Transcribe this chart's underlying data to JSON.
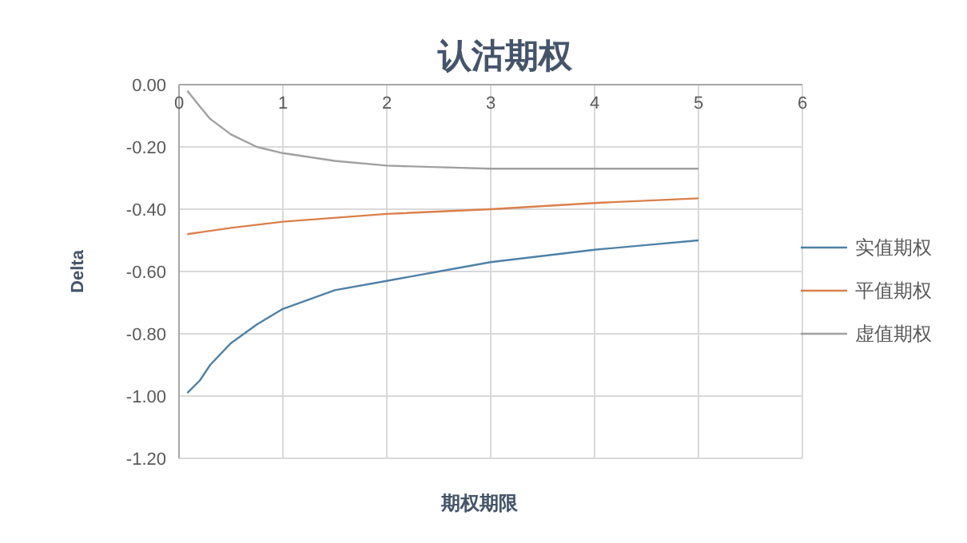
{
  "chart_data": {
    "type": "line",
    "title": "认沽期权",
    "xlabel": "期权期限",
    "ylabel": "Delta",
    "xlim": [
      0,
      6
    ],
    "xticks": [
      0,
      1,
      2,
      3,
      4,
      5,
      6
    ],
    "ylim": [
      -1.2,
      0
    ],
    "yticks": [
      {
        "value": -1.2,
        "label": "-1.20"
      },
      {
        "value": -1,
        "label": "-1.00"
      },
      {
        "value": -0.8,
        "label": "-0.80"
      },
      {
        "value": -0.6,
        "label": "-0.60"
      },
      {
        "value": -0.4,
        "label": "-0.40"
      },
      {
        "value": -0.2,
        "label": "-0.20"
      },
      {
        "value": 0,
        "label": "0.00"
      }
    ],
    "grid": true,
    "legend": "right",
    "series": [
      {
        "name": "实值期权",
        "color": "#4e81a8",
        "x": [
          0.08,
          0.2,
          0.3,
          0.5,
          0.75,
          1,
          1.5,
          2,
          2.5,
          3,
          3.5,
          4,
          4.5,
          5
        ],
        "values": [
          -0.99,
          -0.95,
          -0.9,
          -0.83,
          -0.77,
          -0.72,
          -0.66,
          -0.63,
          -0.6,
          -0.57,
          -0.55,
          -0.53,
          -0.515,
          -0.5
        ]
      },
      {
        "name": "平值期权",
        "color": "#d9804a",
        "x": [
          0.08,
          0.5,
          1,
          2,
          3,
          4,
          5
        ],
        "values": [
          -0.48,
          -0.46,
          -0.44,
          -0.415,
          -0.4,
          -0.38,
          -0.365
        ]
      },
      {
        "name": "虚值期权",
        "color": "#a0a0a0",
        "x": [
          0.08,
          0.2,
          0.3,
          0.5,
          0.75,
          1,
          1.5,
          2,
          2.5,
          3,
          4,
          5
        ],
        "values": [
          -0.02,
          -0.07,
          -0.11,
          -0.16,
          -0.2,
          -0.22,
          -0.245,
          -0.26,
          -0.265,
          -0.27,
          -0.27,
          -0.27
        ]
      }
    ]
  }
}
